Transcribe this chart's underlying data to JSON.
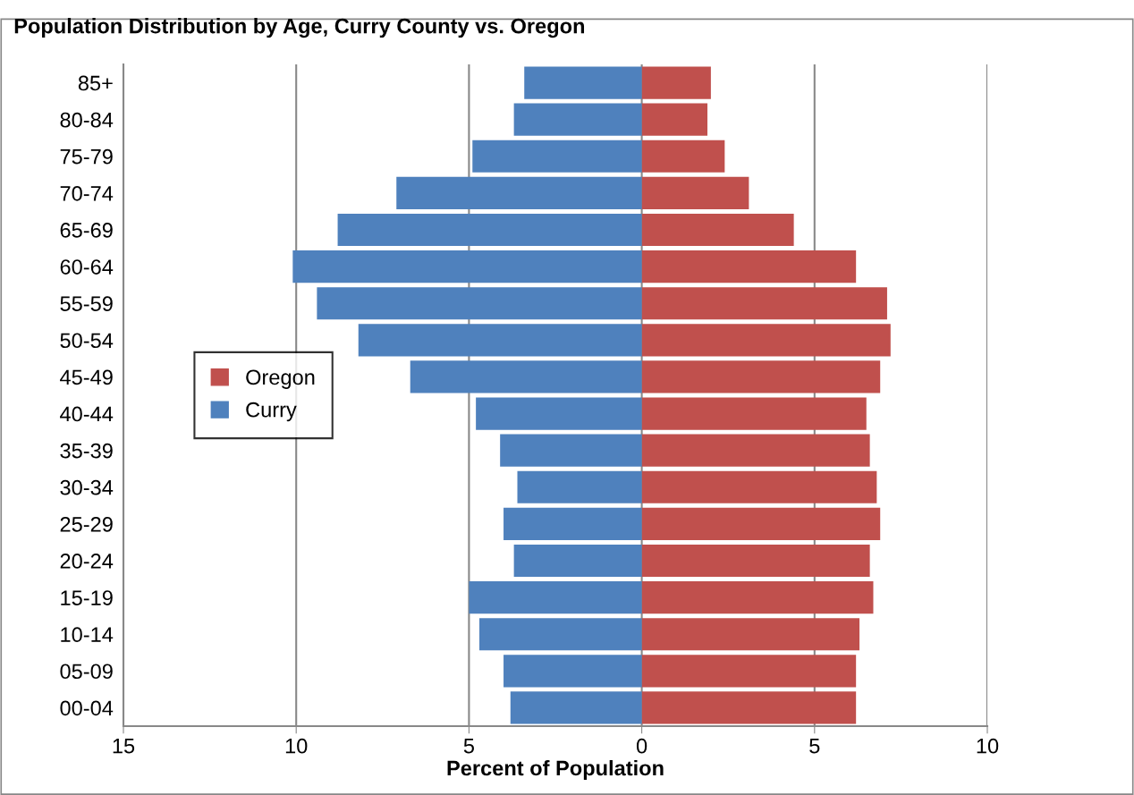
{
  "chart_data": {
    "type": "bar",
    "orientation": "horizontal",
    "title": "Population Distribution by Age, Curry County vs. Oregon",
    "xlabel": "Percent of Population",
    "categories": [
      "85+",
      "80-84",
      "75-79",
      "70-74",
      "65-69",
      "60-64",
      "55-59",
      "50-54",
      "45-49",
      "40-44",
      "35-39",
      "30-34",
      "25-29",
      "20-24",
      "15-19",
      "10-14",
      "05-09",
      "00-04"
    ],
    "series": [
      {
        "name": "Oregon",
        "color": "#c0504d",
        "values": [
          2.0,
          1.9,
          2.4,
          3.1,
          4.4,
          6.2,
          7.1,
          7.2,
          6.9,
          6.5,
          6.6,
          6.8,
          6.9,
          6.6,
          6.7,
          6.3,
          6.2,
          6.2
        ]
      },
      {
        "name": "Curry",
        "color": "#4f81bd",
        "values": [
          -3.4,
          -3.7,
          -4.9,
          -7.1,
          -8.8,
          -10.1,
          -9.4,
          -8.2,
          -6.7,
          -4.8,
          -4.1,
          -3.6,
          -4.0,
          -3.7,
          -5.0,
          -4.7,
          -4.0,
          -3.8
        ]
      }
    ],
    "xlim": [
      -15,
      10
    ],
    "xticks": [
      {
        "value": -15,
        "label": "15"
      },
      {
        "value": -10,
        "label": "10"
      },
      {
        "value": -5,
        "label": "5"
      },
      0,
      5,
      10
    ],
    "stacked": true,
    "grid": "x",
    "legend": "center left"
  }
}
